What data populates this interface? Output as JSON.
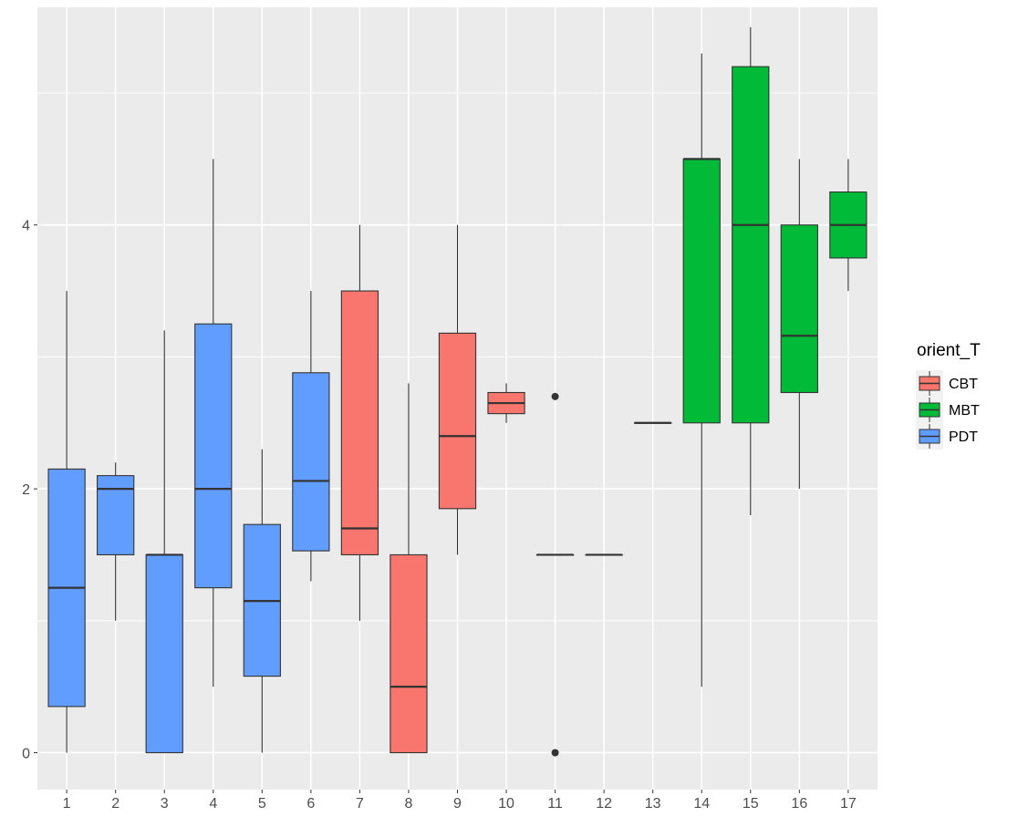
{
  "chart_data": {
    "type": "boxplot",
    "title": "",
    "xlabel": "",
    "ylabel": "",
    "ylim": [
      -0.28,
      5.65
    ],
    "y_ticks": [
      0,
      2,
      4
    ],
    "grid": true,
    "legend_position": "right",
    "legend_title": "orient_T",
    "groups": [
      {
        "name": "CBT",
        "color": "#F8766D"
      },
      {
        "name": "MBT",
        "color": "#00BA38"
      },
      {
        "name": "PDT",
        "color": "#619CFF"
      }
    ],
    "categories": [
      "1",
      "2",
      "3",
      "4",
      "5",
      "6",
      "7",
      "8",
      "9",
      "10",
      "11",
      "12",
      "13",
      "14",
      "15",
      "16",
      "17"
    ],
    "boxes": [
      {
        "x": "1",
        "group": "PDT",
        "min": 0,
        "q1": 0.35,
        "median": 1.25,
        "q3": 2.15,
        "max": 3.5,
        "outliers": []
      },
      {
        "x": "2",
        "group": "PDT",
        "min": 1.0,
        "q1": 1.5,
        "median": 2.0,
        "q3": 2.1,
        "max": 2.2,
        "outliers": []
      },
      {
        "x": "3",
        "group": "PDT",
        "min": 0,
        "q1": 0,
        "median": 1.5,
        "q3": 1.5,
        "max": 3.2,
        "outliers": []
      },
      {
        "x": "4",
        "group": "PDT",
        "min": 0.5,
        "q1": 1.25,
        "median": 2.0,
        "q3": 3.25,
        "max": 4.5,
        "outliers": []
      },
      {
        "x": "5",
        "group": "PDT",
        "min": 0,
        "q1": 0.58,
        "median": 1.15,
        "q3": 1.73,
        "max": 2.3,
        "outliers": []
      },
      {
        "x": "6",
        "group": "PDT",
        "min": 1.3,
        "q1": 1.53,
        "median": 2.06,
        "q3": 2.88,
        "max": 3.5,
        "outliers": []
      },
      {
        "x": "7",
        "group": "CBT",
        "min": 1.0,
        "q1": 1.5,
        "median": 1.7,
        "q3": 3.5,
        "max": 4.0,
        "outliers": []
      },
      {
        "x": "8",
        "group": "CBT",
        "min": 0,
        "q1": 0,
        "median": 0.5,
        "q3": 1.5,
        "max": 2.8,
        "outliers": []
      },
      {
        "x": "9",
        "group": "CBT",
        "min": 1.5,
        "q1": 1.85,
        "median": 2.4,
        "q3": 3.18,
        "max": 4.0,
        "outliers": []
      },
      {
        "x": "10",
        "group": "CBT",
        "min": 2.5,
        "q1": 2.57,
        "median": 2.65,
        "q3": 2.73,
        "max": 2.8,
        "outliers": []
      },
      {
        "x": "11",
        "group": "CBT",
        "min": 1.5,
        "q1": 1.5,
        "median": 1.5,
        "q3": 1.5,
        "max": 1.5,
        "outliers": [
          0,
          2.7
        ]
      },
      {
        "x": "12",
        "group": "CBT",
        "min": 1.5,
        "q1": 1.5,
        "median": 1.5,
        "q3": 1.5,
        "max": 1.5,
        "outliers": []
      },
      {
        "x": "13",
        "group": "MBT",
        "min": 2.5,
        "q1": 2.5,
        "median": 2.5,
        "q3": 2.5,
        "max": 2.5,
        "outliers": []
      },
      {
        "x": "14",
        "group": "MBT",
        "min": 0.5,
        "q1": 2.5,
        "median": 4.5,
        "q3": 4.5,
        "max": 5.3,
        "outliers": []
      },
      {
        "x": "15",
        "group": "MBT",
        "min": 1.8,
        "q1": 2.5,
        "median": 4.0,
        "q3": 5.2,
        "max": 5.5,
        "outliers": []
      },
      {
        "x": "16",
        "group": "MBT",
        "min": 2.0,
        "q1": 2.73,
        "median": 3.16,
        "q3": 4.0,
        "max": 4.5,
        "outliers": []
      },
      {
        "x": "17",
        "group": "MBT",
        "min": 3.5,
        "q1": 3.75,
        "median": 4.0,
        "q3": 4.25,
        "max": 4.5,
        "outliers": []
      }
    ]
  },
  "colors": {
    "panel_bg": "#EBEBEB",
    "grid_major": "#FFFFFF",
    "box_outline": "#333333",
    "tick_text": "#4D4D4D"
  }
}
